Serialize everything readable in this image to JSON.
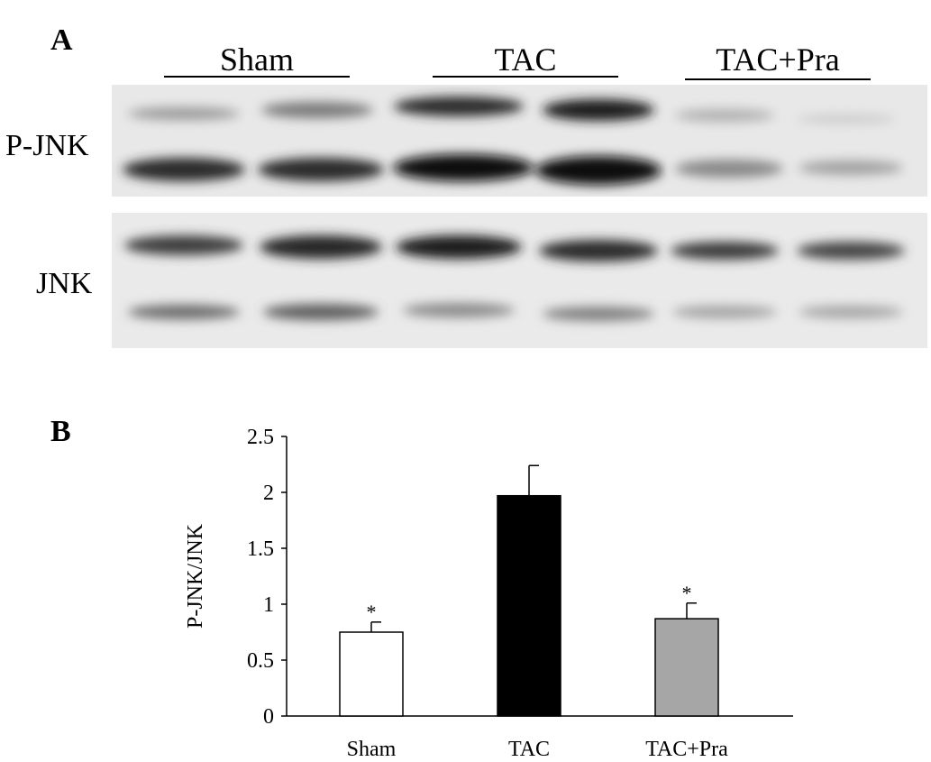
{
  "panel_a": {
    "letter": "A",
    "groups": [
      "Sham",
      "TAC",
      "TAC+Pra"
    ],
    "rows": [
      "P-JNK",
      "JNK"
    ]
  },
  "panel_b": {
    "letter": "B"
  },
  "chart_data": {
    "type": "bar",
    "categories": [
      "Sham",
      "TAC",
      "TAC+Pra"
    ],
    "values": [
      0.75,
      1.97,
      0.87
    ],
    "errors": [
      0.09,
      0.27,
      0.14
    ],
    "significance": [
      "*",
      "",
      "*"
    ],
    "bar_colors": [
      "#ffffff",
      "#000000",
      "#a6a6a6"
    ],
    "title": "",
    "xlabel": "",
    "ylabel": "P-JNK/JNK",
    "ylim": [
      0,
      2.5
    ],
    "yticks": [
      0,
      0.5,
      1,
      1.5,
      2,
      2.5
    ],
    "ytick_labels": [
      "0",
      "0.5",
      "1",
      "1.5",
      "2",
      "2.5"
    ],
    "grid": false
  }
}
